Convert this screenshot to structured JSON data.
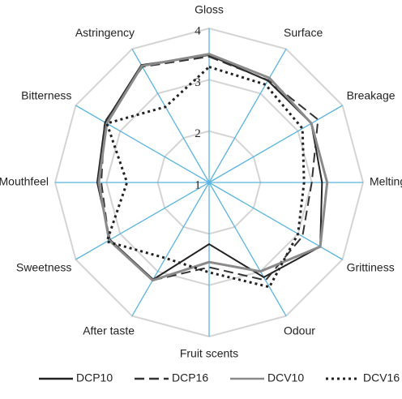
{
  "chart_data": {
    "type": "radar",
    "categories": [
      "Gloss",
      "Surface",
      "Breakage",
      "Melting",
      "Grittiness",
      "Odour",
      "Fruit scents",
      "After taste",
      "Sweetness",
      "Mouthfeel",
      "Bitterness",
      "Astringency"
    ],
    "ylim": [
      1,
      4
    ],
    "yticks": [
      1,
      2,
      3,
      4
    ],
    "grid": true,
    "legend": "bottom",
    "series": [
      {
        "name": "DCP10",
        "color": "#222222",
        "style": "solid",
        "values": [
          3.48,
          3.29,
          3.3,
          3.2,
          3.5,
          3.13,
          2.2,
          3.18,
          3.23,
          3.18,
          3.34,
          3.64
        ]
      },
      {
        "name": "DCP16",
        "color": "#333333",
        "style": "dashed",
        "values": [
          3.45,
          3.3,
          3.45,
          3.0,
          3.1,
          3.2,
          2.65,
          3.2,
          3.25,
          3.1,
          3.35,
          3.6
        ]
      },
      {
        "name": "DCV10",
        "color": "#8a8a8a",
        "style": "solid",
        "values": [
          3.5,
          3.35,
          3.3,
          3.3,
          3.5,
          3.0,
          2.55,
          3.2,
          3.25,
          3.15,
          3.3,
          3.62
        ]
      },
      {
        "name": "DCV16",
        "color": "#222222",
        "style": "dotted",
        "values": [
          3.25,
          3.2,
          3.1,
          2.85,
          3.0,
          3.35,
          2.75,
          2.7,
          3.3,
          2.6,
          3.3,
          2.7
        ]
      }
    ]
  }
}
